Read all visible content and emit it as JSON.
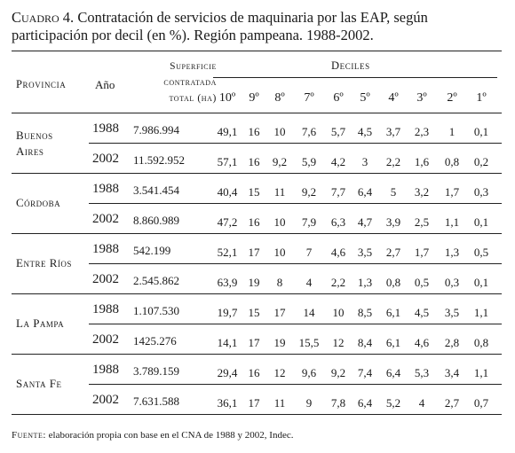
{
  "title": {
    "label": "Cuadro 4.",
    "text": " Contratación de servicios de maquinaria por las EAP, según participación por decil (en %). Región pampeana. 1988-2002."
  },
  "headers": {
    "provincia": "Provincia",
    "anio": "Año",
    "superficie": [
      "Superficie",
      "contratada",
      "total (ha)"
    ],
    "deciles": "Deciles",
    "decile_labels": [
      "10º",
      "9º",
      "8º",
      "7º",
      "6º",
      "5º",
      "4º",
      "3º",
      "2º",
      "1º"
    ]
  },
  "rows": [
    {
      "provincia": [
        "Buenos",
        "Aires"
      ],
      "years": [
        {
          "anio": "1988",
          "superficie": "7.986.994",
          "values": [
            "49,1",
            "16",
            "10",
            "7,6",
            "5,7",
            "4,5",
            "3,7",
            "2,3",
            "1",
            "0,1"
          ]
        },
        {
          "anio": "2002",
          "superficie": "11.592.952",
          "values": [
            "57,1",
            "16",
            "9,2",
            "5,9",
            "4,2",
            "3",
            "2,2",
            "1,6",
            "0,8",
            "0,2"
          ]
        }
      ]
    },
    {
      "provincia": [
        "Córdoba"
      ],
      "years": [
        {
          "anio": "1988",
          "superficie": "3.541.454",
          "values": [
            "40,4",
            "15",
            "11",
            "9,2",
            "7,7",
            "6,4",
            "5",
            "3,2",
            "1,7",
            "0,3"
          ]
        },
        {
          "anio": "2002",
          "superficie": "8.860.989",
          "values": [
            "47,2",
            "16",
            "10",
            "7,9",
            "6,3",
            "4,7",
            "3,9",
            "2,5",
            "1,1",
            "0,1"
          ]
        }
      ]
    },
    {
      "provincia": [
        "Entre Ríos"
      ],
      "years": [
        {
          "anio": "1988",
          "superficie": "542.199",
          "values": [
            "52,1",
            "17",
            "10",
            "7",
            "4,6",
            "3,5",
            "2,7",
            "1,7",
            "1,3",
            "0,5"
          ]
        },
        {
          "anio": "2002",
          "superficie": "2.545.862",
          "values": [
            "63,9",
            "19",
            "8",
            "4",
            "2,2",
            "1,3",
            "0,8",
            "0,5",
            "0,3",
            "0,1"
          ]
        }
      ]
    },
    {
      "provincia": [
        "La Pampa"
      ],
      "years": [
        {
          "anio": "1988",
          "superficie": "1.107.530",
          "values": [
            "19,7",
            "15",
            "17",
            "14",
            "10",
            "8,5",
            "6,1",
            "4,5",
            "3,5",
            "1,1"
          ]
        },
        {
          "anio": "2002",
          "superficie": "1425.276",
          "values": [
            "14,1",
            "17",
            "19",
            "15,5",
            "12",
            "8,4",
            "6,1",
            "4,6",
            "2,8",
            "0,8"
          ]
        }
      ]
    },
    {
      "provincia": [
        "Santa Fe"
      ],
      "years": [
        {
          "anio": "1988",
          "superficie": "3.789.159",
          "values": [
            "29,4",
            "16",
            "12",
            "9,6",
            "9,2",
            "7,4",
            "6,4",
            "5,3",
            "3,4",
            "1,1"
          ]
        },
        {
          "anio": "2002",
          "superficie": "7.631.588",
          "values": [
            "36,1",
            "17",
            "11",
            "9",
            "7,8",
            "6,4",
            "5,2",
            "4",
            "2,7",
            "0,7"
          ]
        }
      ]
    }
  ],
  "footer": {
    "label": "Fuente:",
    "text": " elaboración propia con base en el CNA de 1988 y 2002, Indec."
  }
}
